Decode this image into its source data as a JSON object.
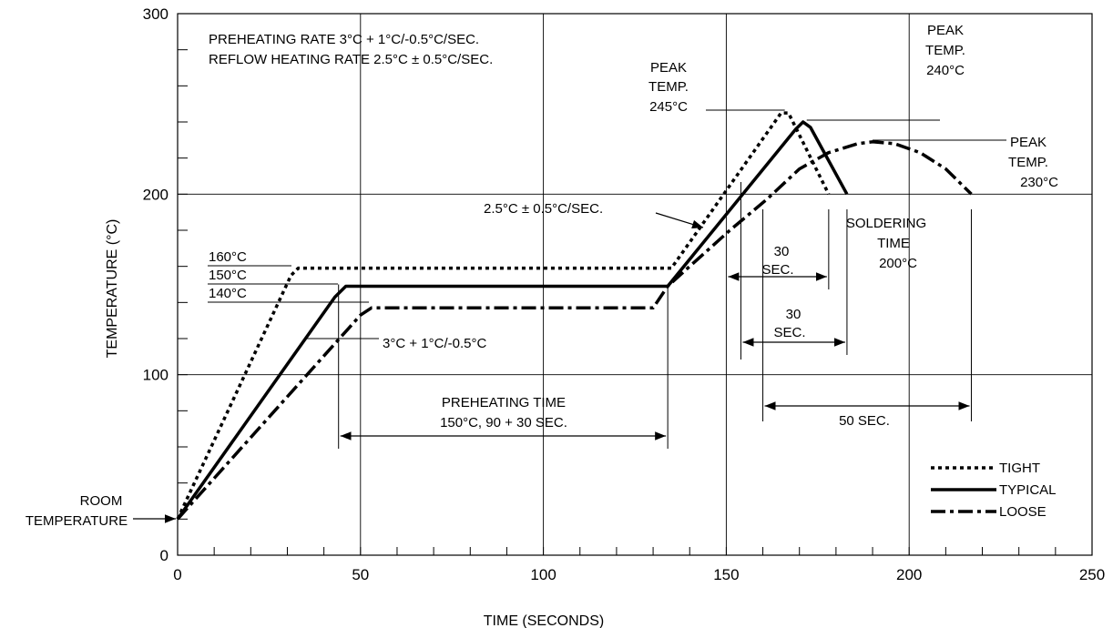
{
  "chart_data": {
    "type": "line",
    "xlabel": "TIME (SECONDS)",
    "ylabel": "TEMPERATURE (°C)",
    "xlim": [
      0,
      250
    ],
    "ylim": [
      0,
      300
    ],
    "x_ticks": [
      0,
      50,
      100,
      150,
      200,
      250
    ],
    "y_ticks": [
      0,
      100,
      200,
      300
    ],
    "x_minor_step": 10,
    "y_minor_step": 20,
    "grid_x": [
      50,
      100,
      150,
      200
    ],
    "grid_y": [
      100,
      200
    ],
    "legend_position": "bottom-right",
    "series": [
      {
        "name": "TIGHT",
        "style": "dotted",
        "points": [
          [
            0,
            20
          ],
          [
            31,
            155
          ],
          [
            33,
            159
          ],
          [
            135,
            159
          ],
          [
            165,
            245
          ],
          [
            167,
            245
          ],
          [
            178,
            200
          ]
        ]
      },
      {
        "name": "TYPICAL",
        "style": "solid",
        "points": [
          [
            0,
            20
          ],
          [
            43,
            143
          ],
          [
            46,
            149
          ],
          [
            134,
            149
          ],
          [
            169,
            236
          ],
          [
            171,
            240
          ],
          [
            173,
            237
          ],
          [
            183,
            200
          ]
        ]
      },
      {
        "name": "LOOSE",
        "style": "dash-dot",
        "points": [
          [
            0,
            20
          ],
          [
            50,
            133
          ],
          [
            53,
            137
          ],
          [
            130,
            137
          ],
          [
            134,
            149
          ],
          [
            140,
            160
          ],
          [
            151,
            180
          ],
          [
            161,
            197
          ],
          [
            170,
            214
          ],
          [
            178,
            223
          ],
          [
            186,
            228
          ],
          [
            190,
            229
          ],
          [
            196,
            228
          ],
          [
            203,
            223
          ],
          [
            210,
            214
          ],
          [
            217,
            200
          ]
        ]
      }
    ],
    "annotations": {
      "rates_line1": "PREHEATING RATE 3°C + 1°C/-0.5°C/SEC.",
      "rates_line2": "REFLOW HEATING RATE 2.5°C ± 0.5°C/SEC.",
      "peak_tight_line1": "PEAK",
      "peak_tight_line2": "TEMP.",
      "peak_tight_line3": "245°C",
      "peak_typical_line1": "PEAK",
      "peak_typical_line2": "TEMP.",
      "peak_typical_line3": "240°C",
      "peak_loose_line1": "PEAK",
      "peak_loose_line2": "TEMP.",
      "peak_loose_line3": "230°C",
      "reflow_rate": "2.5°C ± 0.5°C/SEC.",
      "soak_160": "160°C",
      "soak_150": "150°C",
      "soak_140": "140°C",
      "preheat_rate": "3°C + 1°C/-0.5°C",
      "preheat_time_line1": "PREHEATING TIME",
      "preheat_time_line2": "150°C, 90 + 30 SEC.",
      "dur_30a_line1": "30",
      "dur_30a_line2": "SEC.",
      "dur_30b_line1": "30",
      "dur_30b_line2": "SEC.",
      "dur_50": "50 SEC.",
      "soldering_line1": "SOLDERING",
      "soldering_line2": "TIME",
      "soldering_line3": "200°C",
      "room_line1": "ROOM",
      "room_line2": "TEMPERATURE"
    }
  }
}
